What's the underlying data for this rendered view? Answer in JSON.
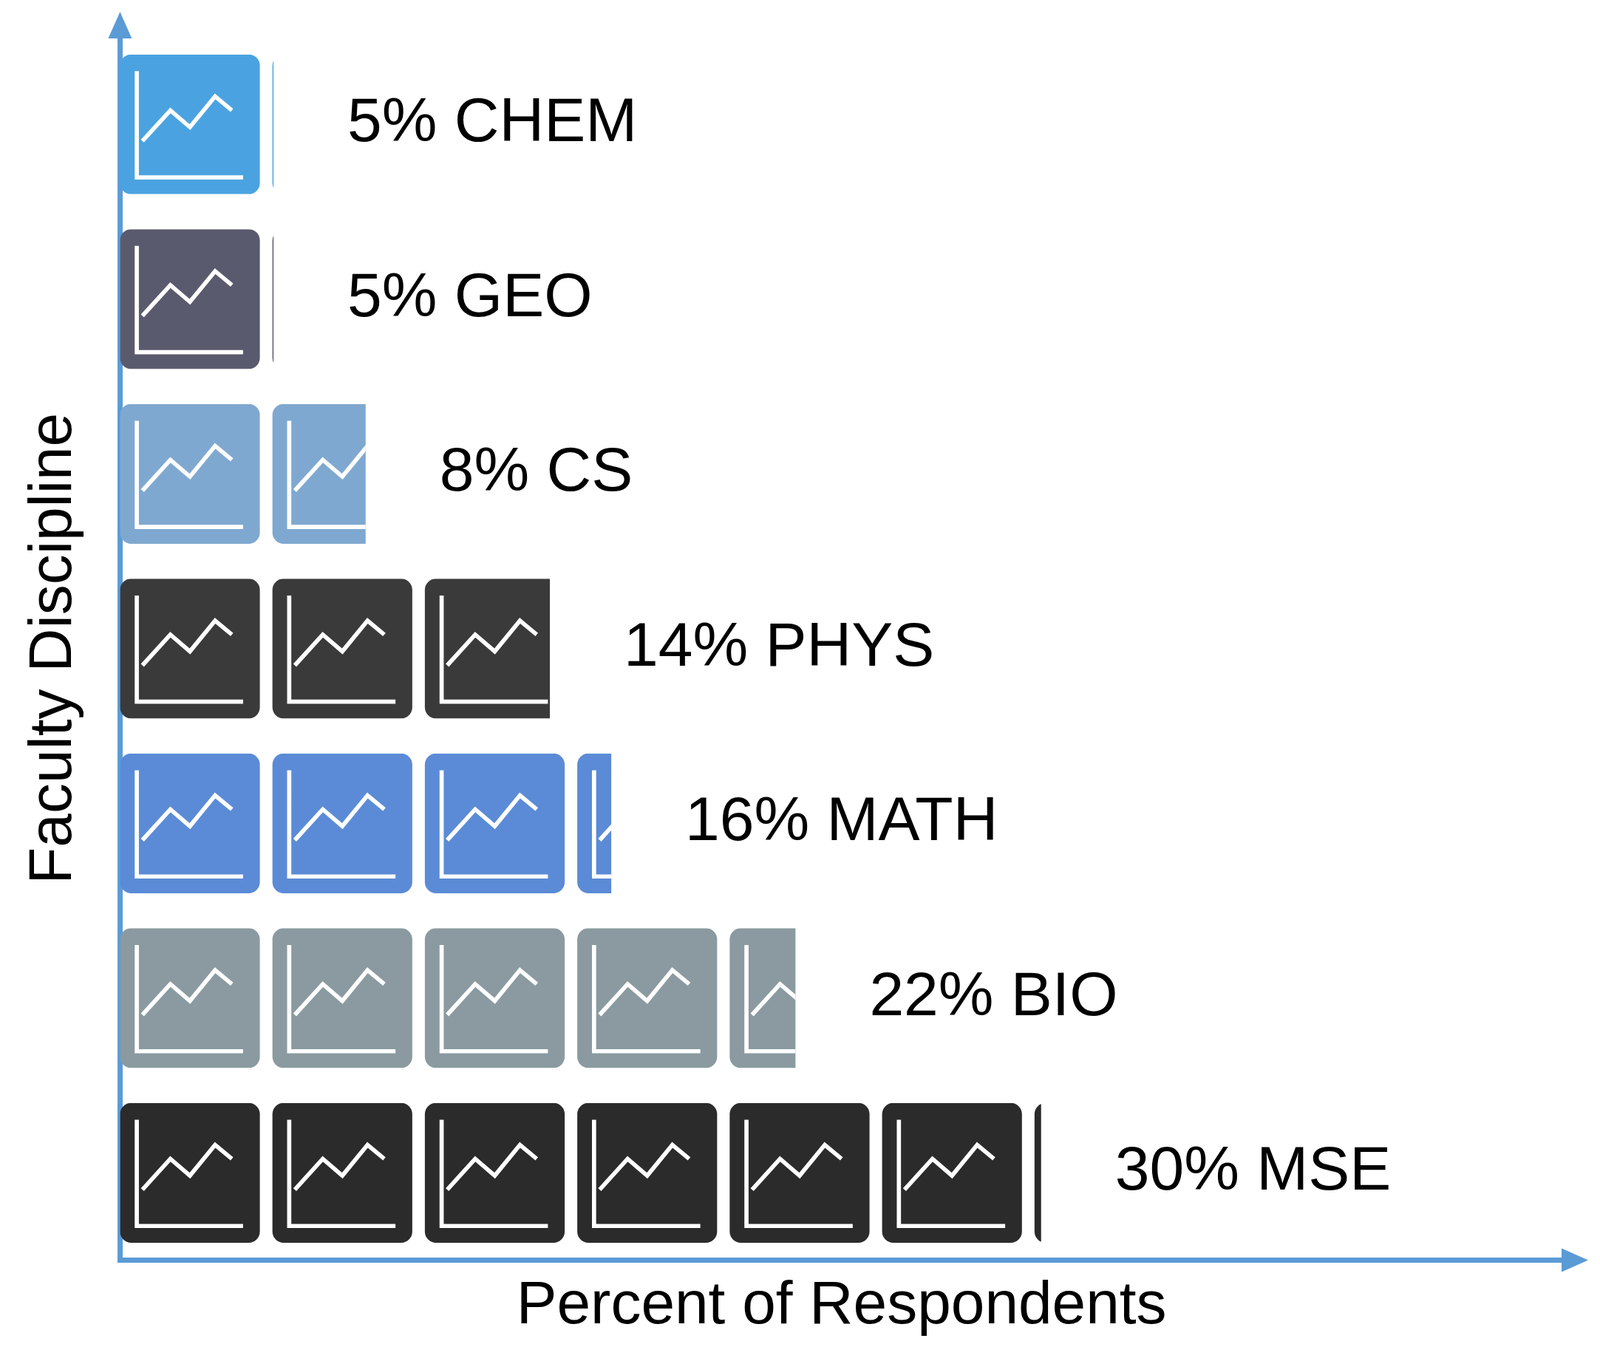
{
  "chart_data": {
    "type": "bar",
    "orientation": "horizontal",
    "categories": [
      "CHEM",
      "GEO",
      "CS",
      "PHYS",
      "MATH",
      "BIO",
      "MSE"
    ],
    "values": [
      5,
      5,
      8,
      14,
      16,
      22,
      30
    ],
    "value_labels": [
      "5% CHEM",
      "5% GEO",
      "8% CS",
      "14% PHYS",
      "16% MATH",
      "22% BIO",
      "30% MSE"
    ],
    "data_labels": true,
    "colors": [
      "#4aa3e0",
      "#5a5a6e",
      "#7fa8d0",
      "#3a3a3a",
      "#5b8bd6",
      "#8a9aa0",
      "#2b2b2b"
    ],
    "xlabel": "Percent of Respondents",
    "ylabel": "Faculty Discipline",
    "xlim": [
      0,
      47
    ],
    "tick_labels": false,
    "grid": false
  }
}
